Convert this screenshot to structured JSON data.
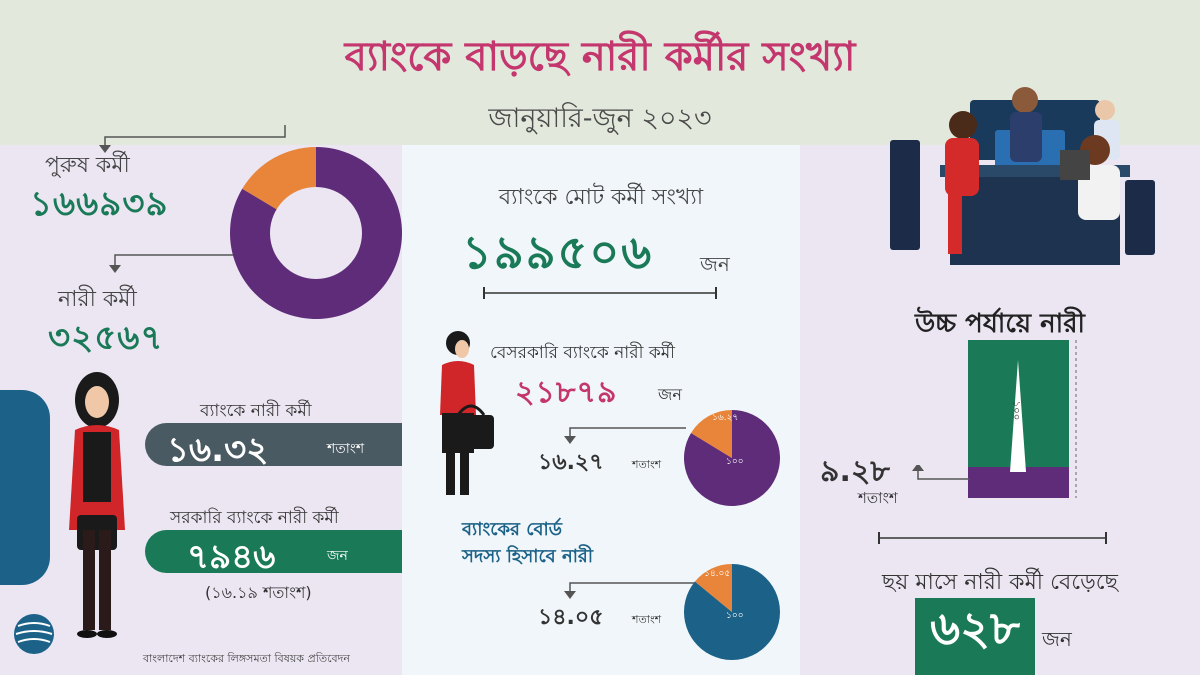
{
  "colors": {
    "title": "#c4366e",
    "green": "#1a7a58",
    "purple": "#5e2c78",
    "orange": "#e8853a",
    "blue": "#1c6288",
    "slate": "#4a5a62",
    "header_bg": "#e3e8dc",
    "panel_lavender": "#ece6f3",
    "panel_blue": "#f0f6f9"
  },
  "header": {
    "title": "ব্যাংকে বাড়ছে নারী কর্মীর সংখ্যা",
    "subtitle": "জানুয়ারি-জুন ২০২৩"
  },
  "left": {
    "male_label": "পুরুষ কর্মী",
    "male_value": "১৬৬৯৩৯",
    "female_label": "নারী কর্মী",
    "female_value": "৩২৫৬৭",
    "donut": {
      "male": 166939,
      "female": 32567
    },
    "bank_women_label": "ব্যাংকে নারী কর্মী",
    "bank_women_value": "১৬.৩২",
    "bank_women_unit": "শতাংশ",
    "govt_label": "সরকারি ব্যাংকে নারী কর্মী",
    "govt_value": "৭৯৪৬",
    "govt_unit": "জন",
    "govt_pct": "(১৬.১৯ শতাংশ)",
    "source": "বাংলাদেশ ব্যাংকের লিঙ্গসমতা বিষয়ক প্রতিবেদন"
  },
  "middle": {
    "total_label": "ব্যাংকে মোট কর্মী সংখ্যা",
    "total_value": "১৯৯৫০৬",
    "total_unit": "জন",
    "private_label": "বেসরকারি ব্যাংকে নারী কর্মী",
    "private_value": "২১৮৭৯",
    "private_unit": "জন",
    "private_pct_value": "১৬.২৭",
    "private_pct_unit": "শতাংশ",
    "private_pie_slice": "১৬.২৭",
    "private_pie_total": "১০০",
    "private_pie": {
      "share": 16.27,
      "total": 100
    },
    "board_label_1": "ব্যাংকের বোর্ড",
    "board_label_2": "সদস্য হিসাবে নারী",
    "board_pct_value": "১৪.০৫",
    "board_pct_unit": "শতাংশ",
    "board_pie_slice": "১৪.০৫",
    "board_pie_total": "১০০",
    "board_pie": {
      "share": 14.05,
      "total": 100
    }
  },
  "right": {
    "senior_title": "উচ্চ পর্যায়ে নারী",
    "bar_total": "১০০",
    "bar_value": "৯.২৮",
    "bar_unit": "শতাংশ",
    "bar": {
      "share": 9.28,
      "total": 100
    },
    "growth_label": "ছয় মাসে নারী কর্মী বেড়েছে",
    "growth_value": "৬২৮",
    "growth_unit": "জন"
  }
}
